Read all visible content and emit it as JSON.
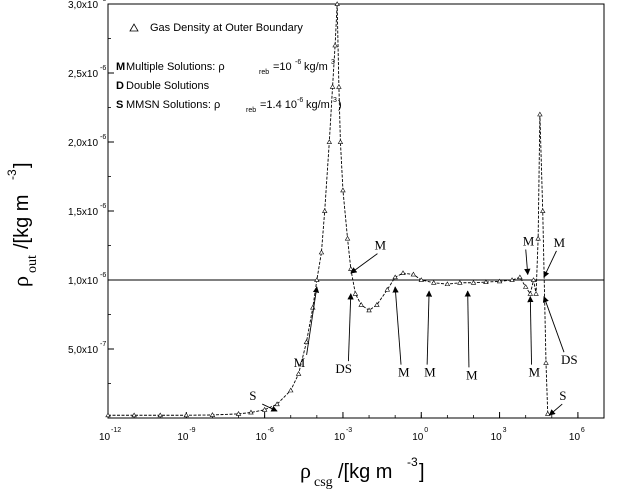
{
  "chart_data": {
    "type": "scatter",
    "x_scale": "log",
    "xlim": [
      1e-12,
      10000000.0
    ],
    "ylim": [
      0,
      3e-06
    ],
    "x_ticks": [
      "10^-12",
      "10^-9",
      "10^-6",
      "10^-3",
      "10^0",
      "10^3",
      "10^6"
    ],
    "y_ticks": [
      "5,0x10^-7",
      "1,0x10^-6",
      "1,5x10^-6",
      "2,0x10^-6",
      "2,5x10^-6",
      "3,0x10^-6"
    ],
    "x_ticks_visible": {
      "base": [
        "10",
        "10",
        "10",
        "10",
        "10",
        "10",
        "10"
      ],
      "exp": [
        "-12",
        "-9",
        "-6",
        "-3",
        "0",
        "3",
        "6"
      ]
    },
    "y_ticks_visible": {
      "mant": [
        "5,0x10",
        "1,0x10",
        "1,5x10",
        "2,0x10",
        "2,5x10",
        "3,0x10"
      ],
      "exp": [
        "-7",
        "-6",
        "-6",
        "-6",
        "-6",
        "-6"
      ]
    },
    "xlabel": {
      "main": "ρ",
      "sub": "csg",
      "unit": "/[kg m",
      "exp": "-3",
      "close": "]"
    },
    "ylabel": {
      "main": "ρ",
      "sub": "out",
      "unit": "/[kg m",
      "exp": "-3",
      "close": "]"
    },
    "reference_line_y": 1e-06,
    "legend": {
      "marker_label": "Gas Density at Outer Boundary",
      "line_m": {
        "bold": "M",
        "text": " Multiple Solutions: ρ",
        "sub": "reb",
        "mid": "=10",
        "exp": "-6",
        "tail": "kg/m",
        "exp2": "3"
      },
      "line_d": {
        "bold": "D",
        "text": " Double Solutions"
      },
      "line_s": {
        "bold": "S",
        "text": " MMSN Solutions: ρ",
        "sub": "reb",
        "mid": "=1.4 10",
        "exp": "-6",
        "tail": "kg/m",
        "exp2": "3",
        "close": ")"
      }
    },
    "series": [
      {
        "marker": "triangle",
        "points": [
          [
            1e-12,
            2e-08
          ],
          [
            1e-11,
            2e-08
          ],
          [
            1e-10,
            2e-08
          ],
          [
            1e-09,
            2e-08
          ],
          [
            1e-08,
            2.2e-08
          ],
          [
            1e-07,
            3e-08
          ],
          [
            3e-07,
            4e-08
          ],
          [
            1e-06,
            6e-08
          ],
          [
            3e-06,
            1e-07
          ],
          [
            1e-05,
            2e-07
          ],
          [
            2e-05,
            3.2e-07
          ],
          [
            4e-05,
            5.5e-07
          ],
          [
            7e-05,
            8e-07
          ],
          [
            0.0001,
            1e-06
          ],
          [
            0.00015,
            1.2e-06
          ],
          [
            0.0002,
            1.5e-06
          ],
          [
            0.0003,
            2e-06
          ],
          [
            0.0004,
            2.4e-06
          ],
          [
            0.0005,
            2.7e-06
          ],
          [
            0.0006,
            3e-06
          ],
          [
            0.0007,
            2.4e-06
          ],
          [
            0.0008,
            2e-06
          ],
          [
            0.001,
            1.65e-06
          ],
          [
            0.0015,
            1.3e-06
          ],
          [
            0.002,
            1.08e-06
          ],
          [
            0.003,
            9e-07
          ],
          [
            0.005,
            8.2e-07
          ],
          [
            0.01,
            7.8e-07
          ],
          [
            0.02,
            8.2e-07
          ],
          [
            0.05,
            9.3e-07
          ],
          [
            0.1,
            1.02e-06
          ],
          [
            0.2,
            1.05e-06
          ],
          [
            0.5,
            1.04e-06
          ],
          [
            1.0,
            1e-06
          ],
          [
            3.0,
            9.8e-07
          ],
          [
            10.0,
            9.7e-07
          ],
          [
            30.0,
            9.8e-07
          ],
          [
            100.0,
            9.8e-07
          ],
          [
            300.0,
            9.85e-07
          ],
          [
            1000.0,
            9.9e-07
          ],
          [
            3000.0,
            1e-06
          ],
          [
            6000.0,
            1.02e-06
          ],
          [
            10000.0,
            9.5e-07
          ],
          [
            15000.0,
            9e-07
          ],
          [
            20000.0,
            1e-06
          ],
          [
            25000.0,
            9e-07
          ],
          [
            30000.0,
            1.3e-06
          ],
          [
            35000.0,
            2.2e-06
          ],
          [
            45000.0,
            1.5e-06
          ],
          [
            60000.0,
            4e-07
          ],
          [
            70000.0,
            3e-08
          ]
        ]
      }
    ],
    "annotations": [
      {
        "text": "S",
        "x": 4e-07,
        "y": 1.3e-07,
        "ax": 3e-06,
        "ay": 5e-08
      },
      {
        "text": "M",
        "x": 2e-05,
        "y": 3.7e-07,
        "ax": 0.0001,
        "ay": 9.5e-07
      },
      {
        "text": "M",
        "x": 0.025,
        "y": 1.22e-06,
        "ax": 0.002,
        "ay": 1.05e-06
      },
      {
        "text": "DS",
        "x": 0.0008,
        "y": 3.25e-07,
        "ax": 0.002,
        "ay": 9e-07
      },
      {
        "text": "M",
        "x": 0.2,
        "y": 3e-07,
        "ax": 0.1,
        "ay": 9.5e-07
      },
      {
        "text": "M",
        "x": 2.0,
        "y": 3e-07,
        "ax": 2.0,
        "ay": 9.2e-07
      },
      {
        "text": "M",
        "x": 80.0,
        "y": 2.8e-07,
        "ax": 60.0,
        "ay": 9.2e-07
      },
      {
        "text": "M",
        "x": 20000.0,
        "y": 3e-07,
        "ax": 15000.0,
        "ay": 8.8e-07
      },
      {
        "text": "M",
        "x": 12000.0,
        "y": 1.25e-06,
        "ax": 12000.0,
        "ay": 1.04e-06
      },
      {
        "text": "M",
        "x": 180000.0,
        "y": 1.24e-06,
        "ax": 50000.0,
        "ay": 1.02e-06
      },
      {
        "text": "DS",
        "x": 350000.0,
        "y": 3.9e-07,
        "ax": 50000.0,
        "ay": 8.8e-07
      },
      {
        "text": "S",
        "x": 300000.0,
        "y": 1.3e-07,
        "ax": 80000.0,
        "ay": 2e-08
      }
    ]
  }
}
